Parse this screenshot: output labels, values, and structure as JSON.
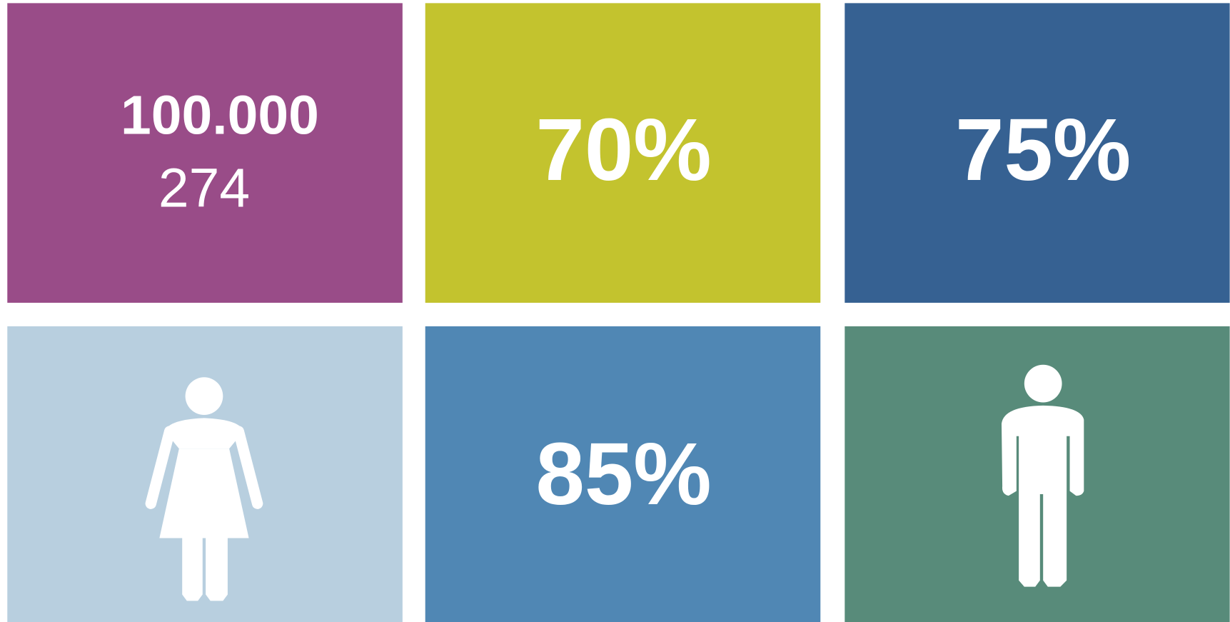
{
  "tiles": [
    {
      "lines": [
        "100.000",
        "274"
      ]
    },
    {
      "lines": [
        "70%"
      ]
    },
    {
      "lines": [
        "75%"
      ]
    },
    {
      "lines": []
    },
    {
      "lines": [
        "85%"
      ]
    },
    {
      "lines": []
    }
  ]
}
